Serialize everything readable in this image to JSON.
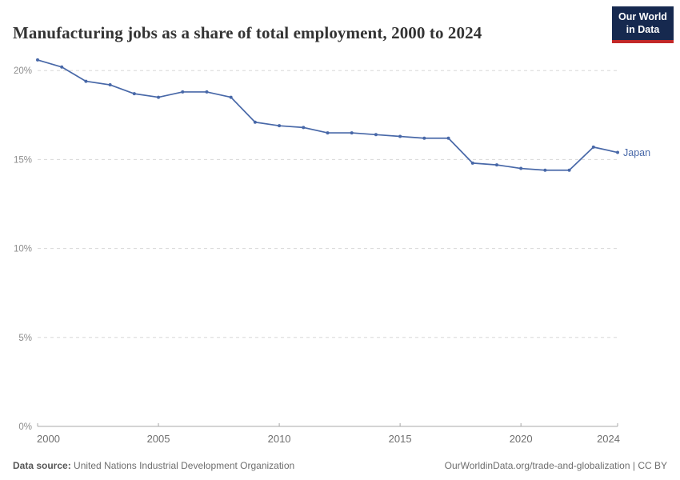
{
  "header": {
    "title": "Manufacturing jobs as a share of total employment, 2000 to 2024",
    "logo": {
      "line1": "Our World",
      "line2": "in Data",
      "bg_color": "#16294f",
      "stripe_color": "#c22828"
    }
  },
  "chart_data": {
    "type": "line",
    "title": "Manufacturing jobs as a share of total employment, 2000 to 2024",
    "x": [
      2000,
      2001,
      2002,
      2003,
      2004,
      2005,
      2006,
      2007,
      2008,
      2009,
      2010,
      2011,
      2012,
      2013,
      2014,
      2015,
      2016,
      2017,
      2018,
      2019,
      2020,
      2021,
      2022,
      2023,
      2024
    ],
    "series": [
      {
        "name": "Japan",
        "color": "#4868a8",
        "values": [
          20.6,
          20.2,
          19.4,
          19.2,
          18.7,
          18.5,
          18.8,
          18.8,
          18.5,
          17.1,
          16.9,
          16.8,
          16.5,
          16.5,
          16.4,
          16.3,
          16.2,
          16.2,
          14.8,
          14.7,
          14.5,
          14.4,
          14.4,
          15.7,
          15.4
        ]
      }
    ],
    "xlabel": "",
    "ylabel": "",
    "x_ticks": [
      2000,
      2005,
      2010,
      2015,
      2020,
      2024
    ],
    "y_ticks": [
      0,
      5,
      10,
      15,
      20
    ],
    "y_tick_suffix": "%",
    "xlim": [
      2000,
      2024
    ],
    "ylim": [
      0,
      21
    ],
    "grid": "horizontal-dashed",
    "legend_position": "line-end",
    "grid_color": "#d8d8d8",
    "axis_color": "#a8a8a8",
    "y_tick_label_color": "#8c8c8c",
    "x_tick_label_color": "#6e6e6e"
  },
  "footer": {
    "datasource_label": "Data source:",
    "datasource_value": "United Nations Industrial Development Organization",
    "link": "OurWorldinData.org/trade-and-globalization",
    "separator": " | ",
    "license": "CC BY"
  }
}
